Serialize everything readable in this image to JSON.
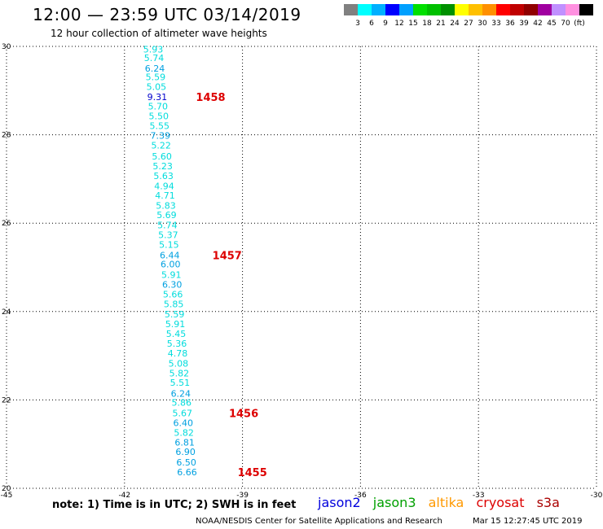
{
  "header": {
    "title": "12:00 — 23:59 UTC 03/14/2019",
    "subtitle": "12 hour collection of altimeter wave heights"
  },
  "legend": {
    "colors": [
      "#808080",
      "#00ffff",
      "#00b0ff",
      "#0000ff",
      "#00a0ff",
      "#00e000",
      "#00c000",
      "#009000",
      "#ffff00",
      "#ffc000",
      "#ff9000",
      "#ff0000",
      "#c00000",
      "#900000",
      "#a000a0",
      "#c090ff",
      "#ff90e0",
      "#000000"
    ],
    "labels": [
      "3",
      "6",
      "9",
      "12",
      "15",
      "18",
      "21",
      "24",
      "27",
      "30",
      "33",
      "36",
      "39",
      "42",
      "45",
      "70",
      "(ft)"
    ]
  },
  "footer": {
    "note": "note: 1) Time is in UTC; 2) SWH is in feet",
    "satellites": [
      {
        "name": "jason2",
        "color": "#0000dd"
      },
      {
        "name": "jason3",
        "color": "#00a000"
      },
      {
        "name": "altika",
        "color": "#ff9900"
      },
      {
        "name": "cryosat",
        "color": "#dd0000"
      },
      {
        "name": "s3a",
        "color": "#aa0000"
      }
    ],
    "credit": "NOAA/NESDIS Center for Satellite Applications and Research",
    "generated": "Mar 15 12:27:45 UTC 2019"
  },
  "chart_data": {
    "type": "scatter",
    "title": "12:00 — 23:59 UTC 03/14/2019",
    "subtitle": "12 hour collection of altimeter wave heights",
    "xlim": [
      -45,
      -30
    ],
    "ylim": [
      20,
      30
    ],
    "x_ticks": [
      -45,
      -42,
      -39,
      -36,
      -33,
      -30
    ],
    "y_ticks": [
      20,
      22,
      24,
      26,
      28,
      30
    ],
    "x_tick_labels": [
      "-45",
      "-42",
      "-39",
      "-36",
      "-33",
      "-30"
    ],
    "y_tick_labels": [
      "20",
      "22",
      "24",
      "26",
      "28",
      "30"
    ],
    "grid": true,
    "unit": "ft",
    "points": [
      {
        "lon": -41.27,
        "lat": 29.94,
        "swh": "5.93",
        "color": "#00dcdc"
      },
      {
        "lon": -41.25,
        "lat": 29.74,
        "swh": "5.74",
        "color": "#00dcdc"
      },
      {
        "lon": -41.23,
        "lat": 29.5,
        "swh": "6.24",
        "color": "#00a0e0"
      },
      {
        "lon": -41.21,
        "lat": 29.31,
        "swh": "5.59",
        "color": "#00dcdc"
      },
      {
        "lon": -41.19,
        "lat": 29.09,
        "swh": "5.05",
        "color": "#00dcdc"
      },
      {
        "lon": -41.17,
        "lat": 28.86,
        "swh": "9.31",
        "color": "#0000cc"
      },
      {
        "lon": -41.15,
        "lat": 28.65,
        "swh": "5.70",
        "color": "#00dcdc"
      },
      {
        "lon": -41.13,
        "lat": 28.43,
        "swh": "5.50",
        "color": "#00dcdc"
      },
      {
        "lon": -41.11,
        "lat": 28.2,
        "swh": "5.55",
        "color": "#00dcdc"
      },
      {
        "lon": -41.09,
        "lat": 27.98,
        "swh": "7.39",
        "color": "#00a0e0"
      },
      {
        "lon": -41.07,
        "lat": 27.76,
        "swh": "5.22",
        "color": "#00dcdc"
      },
      {
        "lon": -41.05,
        "lat": 27.51,
        "swh": "5.60",
        "color": "#00dcdc"
      },
      {
        "lon": -41.03,
        "lat": 27.29,
        "swh": "5.23",
        "color": "#00dcdc"
      },
      {
        "lon": -41.01,
        "lat": 27.07,
        "swh": "5.63",
        "color": "#00dcdc"
      },
      {
        "lon": -40.99,
        "lat": 26.84,
        "swh": "4.94",
        "color": "#00dcdc"
      },
      {
        "lon": -40.97,
        "lat": 26.63,
        "swh": "4.71",
        "color": "#00dcdc"
      },
      {
        "lon": -40.95,
        "lat": 26.4,
        "swh": "5.83",
        "color": "#00dcdc"
      },
      {
        "lon": -40.93,
        "lat": 26.19,
        "swh": "5.69",
        "color": "#00dcdc"
      },
      {
        "lon": -40.91,
        "lat": 25.96,
        "swh": "5.74",
        "color": "#00dcdc"
      },
      {
        "lon": -40.89,
        "lat": 25.74,
        "swh": "5.37",
        "color": "#00dcdc"
      },
      {
        "lon": -40.87,
        "lat": 25.52,
        "swh": "5.15",
        "color": "#00dcdc"
      },
      {
        "lon": -40.85,
        "lat": 25.28,
        "swh": "6.44",
        "color": "#00a0e0"
      },
      {
        "lon": -40.83,
        "lat": 25.07,
        "swh": "6.00",
        "color": "#00a0e0"
      },
      {
        "lon": -40.81,
        "lat": 24.83,
        "swh": "5.91",
        "color": "#00dcdc"
      },
      {
        "lon": -40.79,
        "lat": 24.61,
        "swh": "6.30",
        "color": "#00a0e0"
      },
      {
        "lon": -40.77,
        "lat": 24.39,
        "swh": "5.66",
        "color": "#00dcdc"
      },
      {
        "lon": -40.75,
        "lat": 24.17,
        "swh": "5.85",
        "color": "#00dcdc"
      },
      {
        "lon": -40.73,
        "lat": 23.94,
        "swh": "5.59",
        "color": "#00dcdc"
      },
      {
        "lon": -40.71,
        "lat": 23.72,
        "swh": "5.91",
        "color": "#00dcdc"
      },
      {
        "lon": -40.69,
        "lat": 23.5,
        "swh": "5.45",
        "color": "#00dcdc"
      },
      {
        "lon": -40.67,
        "lat": 23.28,
        "swh": "5.36",
        "color": "#00dcdc"
      },
      {
        "lon": -40.65,
        "lat": 23.06,
        "swh": "4.78",
        "color": "#00dcdc"
      },
      {
        "lon": -40.63,
        "lat": 22.83,
        "swh": "5.08",
        "color": "#00dcdc"
      },
      {
        "lon": -40.61,
        "lat": 22.61,
        "swh": "5.82",
        "color": "#00dcdc"
      },
      {
        "lon": -40.59,
        "lat": 22.39,
        "swh": "5.51",
        "color": "#00dcdc"
      },
      {
        "lon": -40.57,
        "lat": 22.15,
        "swh": "6.24",
        "color": "#00a0e0"
      },
      {
        "lon": -40.55,
        "lat": 21.94,
        "swh": "5.86",
        "color": "#00dcdc"
      },
      {
        "lon": -40.53,
        "lat": 21.7,
        "swh": "5.67",
        "color": "#00dcdc"
      },
      {
        "lon": -40.51,
        "lat": 21.48,
        "swh": "6.40",
        "color": "#00a0e0"
      },
      {
        "lon": -40.49,
        "lat": 21.26,
        "swh": "5.82",
        "color": "#00dcdc"
      },
      {
        "lon": -40.47,
        "lat": 21.04,
        "swh": "6.81",
        "color": "#00a0e0"
      },
      {
        "lon": -40.45,
        "lat": 20.83,
        "swh": "6.90",
        "color": "#00a0e0"
      },
      {
        "lon": -40.43,
        "lat": 20.59,
        "swh": "6.50",
        "color": "#00a0e0"
      },
      {
        "lon": -40.41,
        "lat": 20.37,
        "swh": "6.66",
        "color": "#00a0e0"
      }
    ],
    "time_labels": [
      {
        "text": "1458",
        "lon": -39.81,
        "lat": 28.86
      },
      {
        "text": "1457",
        "lon": -39.39,
        "lat": 25.28
      },
      {
        "text": "1456",
        "lon": -38.97,
        "lat": 21.7
      },
      {
        "text": "1455",
        "lon": -38.75,
        "lat": 20.37
      }
    ],
    "time_label_color": "#dd0000"
  }
}
